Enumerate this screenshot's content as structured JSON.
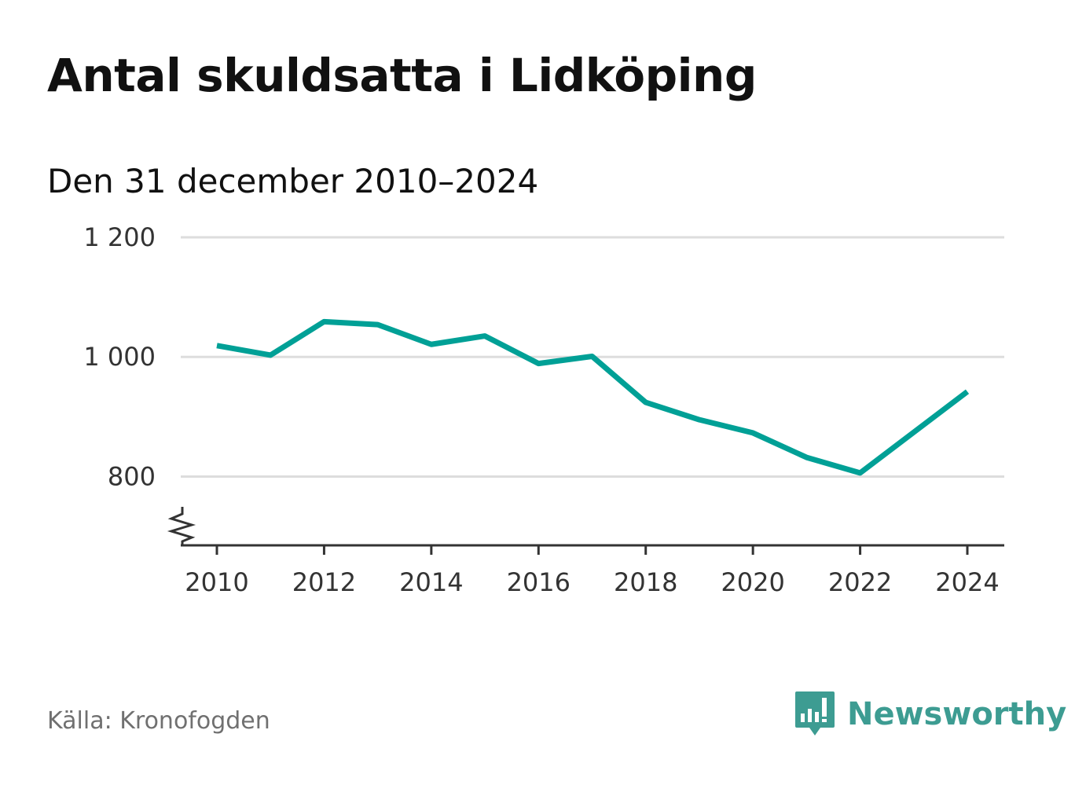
{
  "title": "Antal skuldsatta i Lidköping",
  "subtitle": "Den 31 december 2010–2024",
  "source": "Källa: Kronofogden",
  "brand": {
    "name": "Newsworthy",
    "icon": "bar-chart-speech-bubble-icon",
    "color": "#3d9c92"
  },
  "chart_data": {
    "type": "line",
    "title": "Antal skuldsatta i Lidköping",
    "subtitle": "Den 31 december 2010–2024",
    "xlabel": "",
    "ylabel": "",
    "x": [
      2010,
      2011,
      2012,
      2013,
      2014,
      2015,
      2016,
      2017,
      2018,
      2019,
      2020,
      2021,
      2022,
      2023,
      2024
    ],
    "series": [
      {
        "name": "Antal skuldsatta",
        "color": "#00a096",
        "values": [
          1019,
          1003,
          1059,
          1054,
          1021,
          1035,
          989,
          1001,
          924,
          895,
          873,
          832,
          806,
          874,
          942
        ]
      }
    ],
    "ylim": [
      685,
      1200
    ],
    "y_ticks": [
      800,
      1000,
      1200
    ],
    "y_tick_labels": [
      "800",
      "1 000",
      "1 200"
    ],
    "x_ticks": [
      2010,
      2012,
      2014,
      2016,
      2018,
      2020,
      2022,
      2024
    ],
    "x_tick_labels": [
      "2010",
      "2012",
      "2014",
      "2016",
      "2018",
      "2020",
      "2022",
      "2024"
    ],
    "grid": true,
    "axis_break": true
  }
}
